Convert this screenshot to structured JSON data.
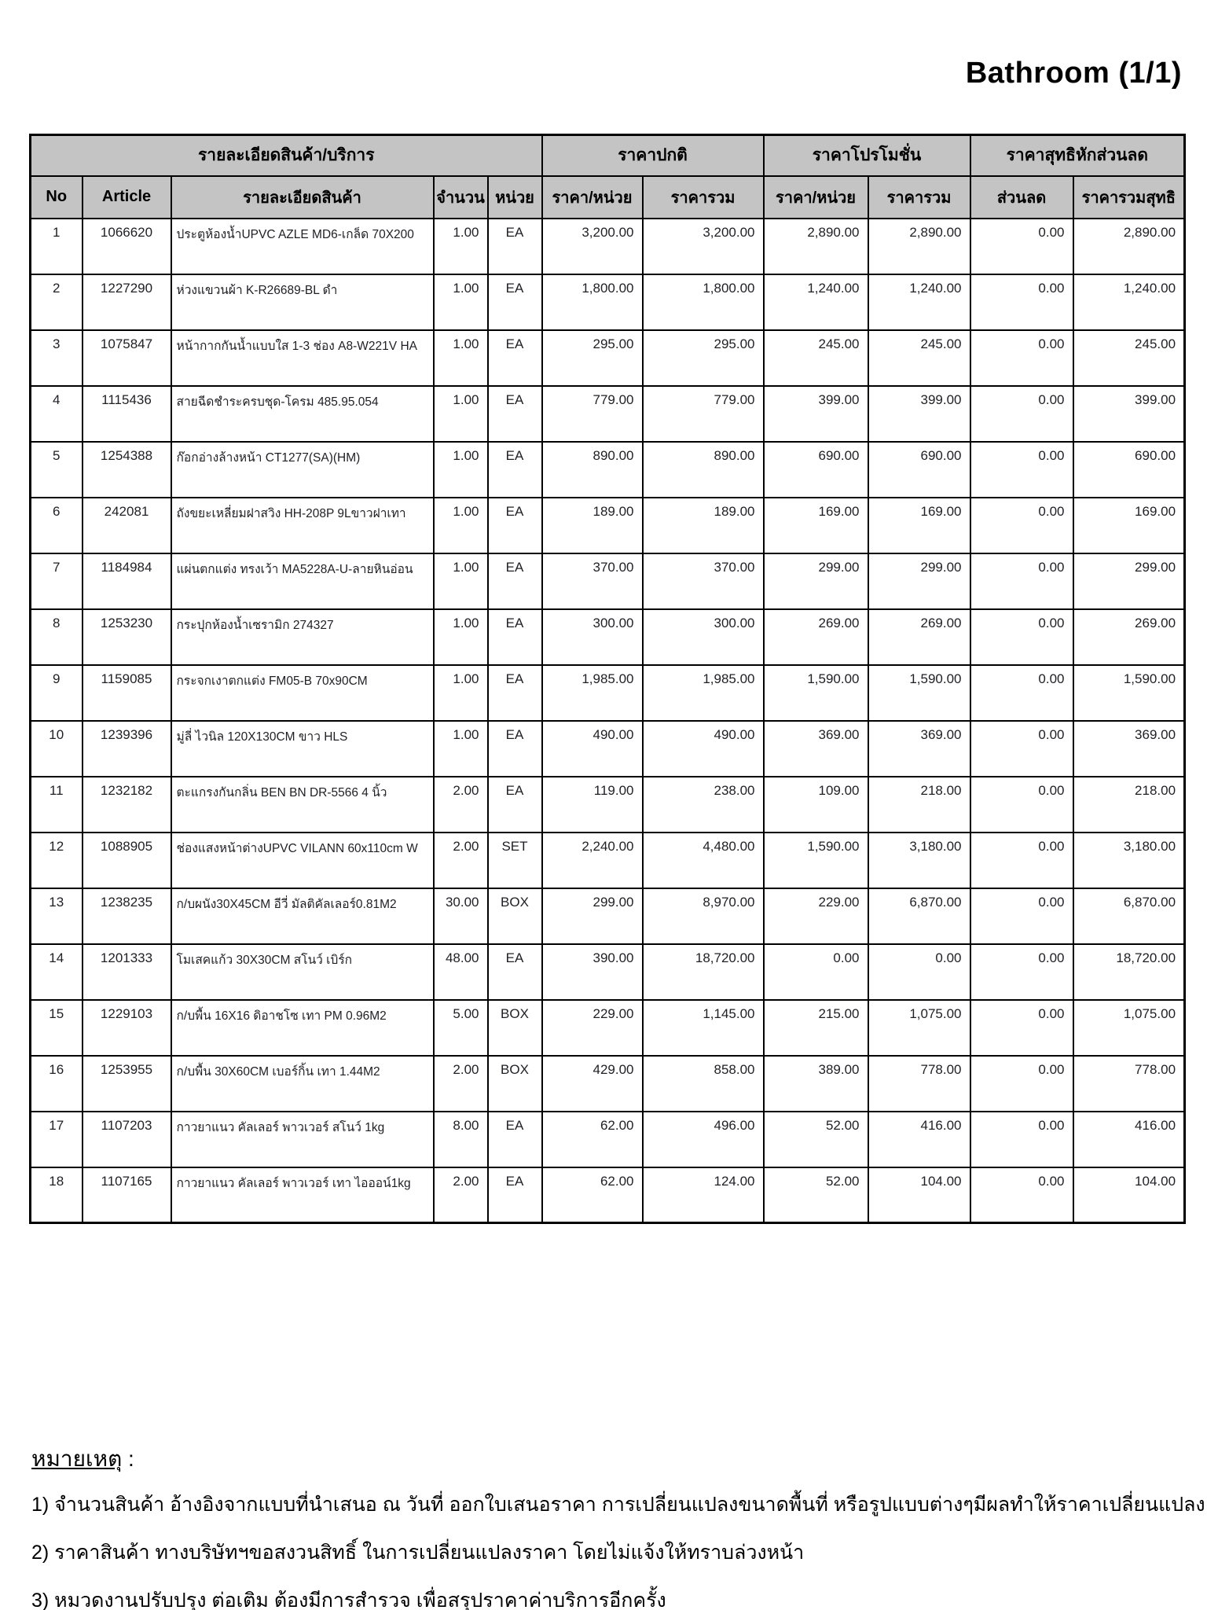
{
  "page": {
    "title": "Bathroom",
    "page_indicator": "(1/1)"
  },
  "colors": {
    "header_bg": "#c4c4c4",
    "border": "#000000",
    "text": "#1f1f24"
  },
  "table": {
    "group_headers": [
      "รายละเอียดสินค้า/บริการ",
      "ราคาปกติ",
      "ราคาโปรโมชั่น",
      "ราคาสุทธิหักส่วนลด"
    ],
    "columns": [
      "No",
      "Article",
      "รายละเอียดสินค้า",
      "จำนวน",
      "หน่วย",
      "ราคา/หน่วย",
      "ราคารวม",
      "ราคา/หน่วย",
      "ราคารวม",
      "ส่วนลด",
      "ราคารวมสุทธิ"
    ],
    "rows": [
      {
        "no": "1",
        "article": "1066620",
        "desc": "ประตูห้องน้ำUPVC AZLE MD6-เกล็ด 70X200",
        "qty": "1.00",
        "unit": "EA",
        "price_unit": "3,200.00",
        "price_total": "3,200.00",
        "promo_unit": "2,890.00",
        "promo_total": "2,890.00",
        "discount": "0.00",
        "net_total": "2,890.00"
      },
      {
        "no": "2",
        "article": "1227290",
        "desc": "ห่วงแขวนผ้า K-R26689-BL ดำ",
        "qty": "1.00",
        "unit": "EA",
        "price_unit": "1,800.00",
        "price_total": "1,800.00",
        "promo_unit": "1,240.00",
        "promo_total": "1,240.00",
        "discount": "0.00",
        "net_total": "1,240.00"
      },
      {
        "no": "3",
        "article": "1075847",
        "desc": "หน้ากากกันน้ำแบบใส 1-3 ช่อง A8-W221V HA",
        "qty": "1.00",
        "unit": "EA",
        "price_unit": "295.00",
        "price_total": "295.00",
        "promo_unit": "245.00",
        "promo_total": "245.00",
        "discount": "0.00",
        "net_total": "245.00"
      },
      {
        "no": "4",
        "article": "1115436",
        "desc": "สายฉีดชำระครบชุด-โครม 485.95.054",
        "qty": "1.00",
        "unit": "EA",
        "price_unit": "779.00",
        "price_total": "779.00",
        "promo_unit": "399.00",
        "promo_total": "399.00",
        "discount": "0.00",
        "net_total": "399.00"
      },
      {
        "no": "5",
        "article": "1254388",
        "desc": "ก๊อกอ่างล้างหน้า CT1277(SA)(HM)",
        "qty": "1.00",
        "unit": "EA",
        "price_unit": "890.00",
        "price_total": "890.00",
        "promo_unit": "690.00",
        "promo_total": "690.00",
        "discount": "0.00",
        "net_total": "690.00"
      },
      {
        "no": "6",
        "article": "242081",
        "desc": "ถังขยะเหลี่ยมฝาสวิง HH-208P 9Lขาวฝาเทา",
        "qty": "1.00",
        "unit": "EA",
        "price_unit": "189.00",
        "price_total": "189.00",
        "promo_unit": "169.00",
        "promo_total": "169.00",
        "discount": "0.00",
        "net_total": "169.00"
      },
      {
        "no": "7",
        "article": "1184984",
        "desc": "แผ่นตกแต่ง ทรงเว้า MA5228A-U-ลายหินอ่อน",
        "qty": "1.00",
        "unit": "EA",
        "price_unit": "370.00",
        "price_total": "370.00",
        "promo_unit": "299.00",
        "promo_total": "299.00",
        "discount": "0.00",
        "net_total": "299.00"
      },
      {
        "no": "8",
        "article": "1253230",
        "desc": "กระปุกห้องน้ำเซรามิก 274327",
        "qty": "1.00",
        "unit": "EA",
        "price_unit": "300.00",
        "price_total": "300.00",
        "promo_unit": "269.00",
        "promo_total": "269.00",
        "discount": "0.00",
        "net_total": "269.00"
      },
      {
        "no": "9",
        "article": "1159085",
        "desc": "กระจกเงาตกแต่ง FM05-B 70x90CM",
        "qty": "1.00",
        "unit": "EA",
        "price_unit": "1,985.00",
        "price_total": "1,985.00",
        "promo_unit": "1,590.00",
        "promo_total": "1,590.00",
        "discount": "0.00",
        "net_total": "1,590.00"
      },
      {
        "no": "10",
        "article": "1239396",
        "desc": "มู่ลี่ ไวนิล 120X130CM ขาว HLS",
        "qty": "1.00",
        "unit": "EA",
        "price_unit": "490.00",
        "price_total": "490.00",
        "promo_unit": "369.00",
        "promo_total": "369.00",
        "discount": "0.00",
        "net_total": "369.00"
      },
      {
        "no": "11",
        "article": "1232182",
        "desc": "ตะแกรงกันกลิ่น  BEN BN DR-5566 4 นิ้ว",
        "qty": "2.00",
        "unit": "EA",
        "price_unit": "119.00",
        "price_total": "238.00",
        "promo_unit": "109.00",
        "promo_total": "218.00",
        "discount": "0.00",
        "net_total": "218.00"
      },
      {
        "no": "12",
        "article": "1088905",
        "desc": "ช่องแสงหน้าต่างUPVC VILANN 60x110cm W",
        "qty": "2.00",
        "unit": "SET",
        "price_unit": "2,240.00",
        "price_total": "4,480.00",
        "promo_unit": "1,590.00",
        "promo_total": "3,180.00",
        "discount": "0.00",
        "net_total": "3,180.00"
      },
      {
        "no": "13",
        "article": "1238235",
        "desc": "ก/บผนัง30X45CM อีวี่ มัลติคัลเลอร์0.81M2",
        "qty": "30.00",
        "unit": "BOX",
        "price_unit": "299.00",
        "price_total": "8,970.00",
        "promo_unit": "229.00",
        "promo_total": "6,870.00",
        "discount": "0.00",
        "net_total": "6,870.00"
      },
      {
        "no": "14",
        "article": "1201333",
        "desc": "โมเสคแก้ว 30X30CM สโนว์ เบิร์ก",
        "qty": "48.00",
        "unit": "EA",
        "price_unit": "390.00",
        "price_total": "18,720.00",
        "promo_unit": "0.00",
        "promo_total": "0.00",
        "discount": "0.00",
        "net_total": "18,720.00"
      },
      {
        "no": "15",
        "article": "1229103",
        "desc": "ก/บพื้น 16X16 ดิอาชโซ เทา PM 0.96M2",
        "qty": "5.00",
        "unit": "BOX",
        "price_unit": "229.00",
        "price_total": "1,145.00",
        "promo_unit": "215.00",
        "promo_total": "1,075.00",
        "discount": "0.00",
        "net_total": "1,075.00"
      },
      {
        "no": "16",
        "article": "1253955",
        "desc": "ก/บพื้น 30X60CM เบอร์กิ้น เทา 1.44M2",
        "qty": "2.00",
        "unit": "BOX",
        "price_unit": "429.00",
        "price_total": "858.00",
        "promo_unit": "389.00",
        "promo_total": "778.00",
        "discount": "0.00",
        "net_total": "778.00"
      },
      {
        "no": "17",
        "article": "1107203",
        "desc": "กาวยาแนว คัลเลอร์ พาวเวอร์ สโนว์ 1kg",
        "qty": "8.00",
        "unit": "EA",
        "price_unit": "62.00",
        "price_total": "496.00",
        "promo_unit": "52.00",
        "promo_total": "416.00",
        "discount": "0.00",
        "net_total": "416.00"
      },
      {
        "no": "18",
        "article": "1107165",
        "desc": "กาวยาแนว คัลเลอร์ พาวเวอร์ เทา ไอออน์1kg",
        "qty": "2.00",
        "unit": "EA",
        "price_unit": "62.00",
        "price_total": "124.00",
        "promo_unit": "52.00",
        "promo_total": "104.00",
        "discount": "0.00",
        "net_total": "104.00"
      }
    ]
  },
  "notes": {
    "heading": "หมายเหตุ",
    "heading_suffix": " :",
    "items": [
      "1) จำนวนสินค้า อ้างอิงจากแบบที่นำเสนอ ณ วันที่ ออกใบเสนอราคา การเปลี่ยนแปลงขนาดพื้นที่ หรือรูปแบบต่างๆมีผลทำให้ราคาเปลี่ยนแปลง",
      "2) ราคาสินค้า ทางบริษัทฯขอสงวนสิทธิ์ ในการเปลี่ยนแปลงราคา โดยไม่แจ้งให้ทราบล่วงหน้า",
      "3) หมวดงานปรับปรุง ต่อเติม ต้องมีการสำรวจ เพื่อสรุปราคาค่าบริการอีกครั้ง"
    ]
  }
}
